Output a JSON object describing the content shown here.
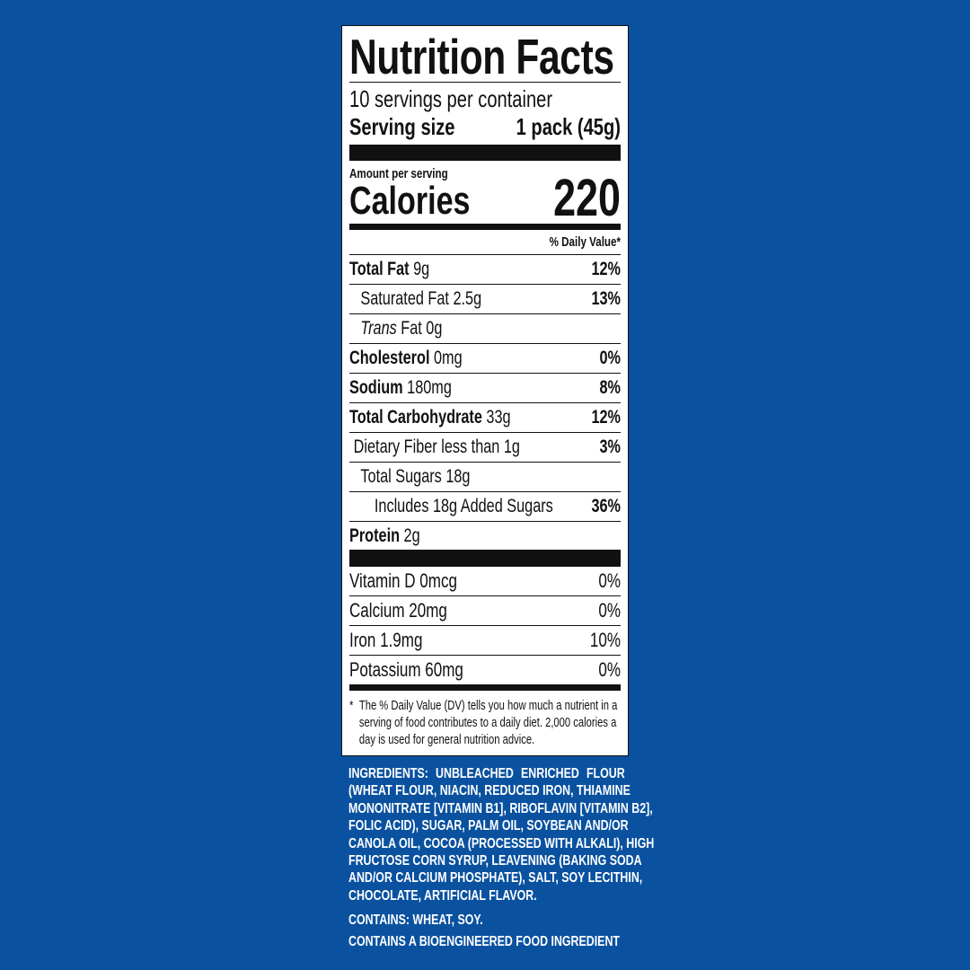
{
  "label": {
    "title": "Nutrition Facts",
    "servings": "10 servings per container",
    "serving_size_label": "Serving size",
    "serving_size_value": "1 pack (45g)",
    "amount_per_serving": "Amount per serving",
    "calories_label": "Calories",
    "calories_value": "220",
    "daily_value_header": "% Daily Value*",
    "nutrients": [
      {
        "name": "Total Fat",
        "amount": "9g",
        "dv": "12%"
      },
      {
        "name": "Saturated Fat",
        "amount": "2.5g",
        "dv": "13%"
      },
      {
        "name": "Trans",
        "name2": "Fat",
        "amount": "0g",
        "dv": ""
      },
      {
        "name": "Cholesterol",
        "amount": "0mg",
        "dv": "0%"
      },
      {
        "name": "Sodium",
        "amount": "180mg",
        "dv": "8%"
      },
      {
        "name": "Total Carbohydrate",
        "amount": "33g",
        "dv": "12%"
      },
      {
        "name": "Dietary Fiber less than",
        "amount": "1g",
        "dv": "3%"
      },
      {
        "name": "Total Sugars",
        "amount": "18g",
        "dv": ""
      },
      {
        "name": "Includes 18g Added Sugars",
        "amount": "",
        "dv": "36%"
      },
      {
        "name": "Protein",
        "amount": "2g",
        "dv": ""
      }
    ],
    "vitamins": [
      {
        "name": "Vitamin D 0mcg",
        "dv": "0%"
      },
      {
        "name": "Calcium 20mg",
        "dv": "0%"
      },
      {
        "name": "Iron 1.9mg",
        "dv": "10%"
      },
      {
        "name": "Potassium 60mg",
        "dv": "0%"
      }
    ],
    "footnote_star": "*",
    "footnote": "The % Daily Value (DV) tells you how much a nutrient in a serving of food contributes to a daily diet. 2,000 calories a day is used for general nutrition advice."
  },
  "ingredients": {
    "lines": [
      "INGREDIENTS: UNBLEACHED ENRICHED FLOUR",
      "(WHEAT FLOUR, NIACIN, REDUCED IRON, THIAMINE",
      "MONONITRATE [VITAMIN B1], RIBOFLAVIN [VITAMIN B2],",
      "FOLIC ACID), SUGAR, PALM OIL, SOYBEAN AND/OR",
      "CANOLA OIL, COCOA (PROCESSED WITH ALKALI), HIGH",
      "FRUCTOSE CORN SYRUP, LEAVENING (BAKING SODA",
      "AND/OR CALCIUM PHOSPHATE), SALT, SOY LECITHIN,",
      "CHOCOLATE, ARTIFICIAL FLAVOR."
    ],
    "contains": "CONTAINS: WHEAT, SOY.",
    "bioengineered": "CONTAINS A BIOENGINEERED FOOD INGREDIENT"
  },
  "colors": {
    "background": "#0a52a0",
    "label": "#ffffff",
    "ink": "#111111"
  }
}
